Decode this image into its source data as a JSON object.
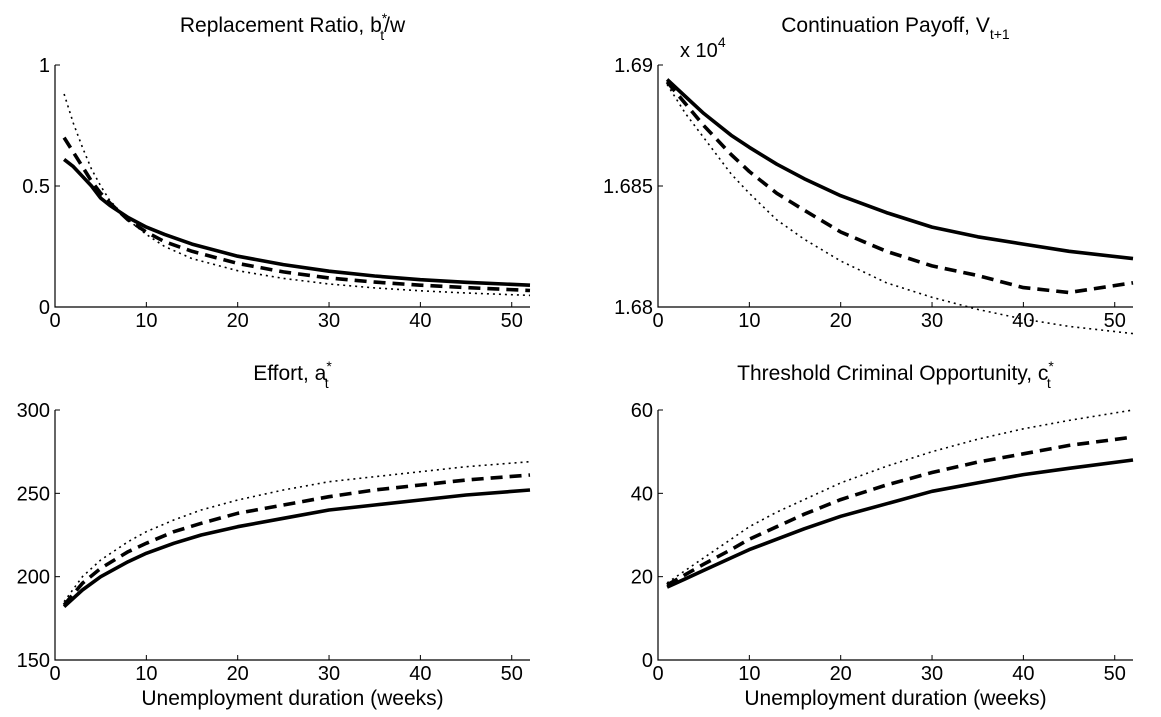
{
  "chart_data": [
    {
      "type": "line",
      "title": "Replacement Ratio, b",
      "title_sub": "t",
      "title_sup": "*",
      "title_tail": "/w",
      "xlabel": "",
      "xlim": [
        0,
        52
      ],
      "ylim": [
        0,
        1
      ],
      "xticks": [
        "0",
        "10",
        "20",
        "30",
        "40",
        "50"
      ],
      "yticks": [
        "0",
        "0.5",
        "1"
      ],
      "ytick_values": [
        0,
        0.5,
        1
      ],
      "exponent_label": "",
      "grid": false,
      "series": [
        {
          "style": "solid",
          "x": [
            1,
            2,
            3,
            4,
            5,
            6,
            8,
            10,
            12,
            15,
            20,
            25,
            30,
            35,
            40,
            45,
            52
          ],
          "y": [
            0.61,
            0.58,
            0.54,
            0.5,
            0.45,
            0.42,
            0.37,
            0.33,
            0.3,
            0.26,
            0.21,
            0.175,
            0.148,
            0.128,
            0.113,
            0.102,
            0.09
          ]
        },
        {
          "style": "dashed",
          "x": [
            1,
            2,
            3,
            4,
            5,
            6,
            8,
            10,
            12,
            15,
            20,
            25,
            30,
            35,
            40,
            45,
            52
          ],
          "y": [
            0.7,
            0.64,
            0.58,
            0.52,
            0.47,
            0.43,
            0.36,
            0.31,
            0.27,
            0.23,
            0.18,
            0.145,
            0.12,
            0.103,
            0.09,
            0.08,
            0.068
          ]
        },
        {
          "style": "dotted",
          "x": [
            1,
            2,
            3,
            4,
            5,
            6,
            8,
            10,
            12,
            15,
            20,
            25,
            30,
            35,
            40,
            45,
            52
          ],
          "y": [
            0.88,
            0.76,
            0.66,
            0.57,
            0.5,
            0.44,
            0.36,
            0.3,
            0.25,
            0.2,
            0.15,
            0.118,
            0.095,
            0.079,
            0.067,
            0.058,
            0.048
          ]
        }
      ]
    },
    {
      "type": "line",
      "title": "Continuation Payoff, V",
      "title_sub": "t+1",
      "title_sup": "",
      "title_tail": "",
      "xlabel": "",
      "xlim": [
        0,
        52
      ],
      "ylim": [
        1.68,
        1.69
      ],
      "xticks": [
        "0",
        "10",
        "20",
        "30",
        "40",
        "50"
      ],
      "yticks": [
        "1.68",
        "1.685",
        "1.69"
      ],
      "ytick_values": [
        1.68,
        1.685,
        1.69
      ],
      "exponent_label": "x 10",
      "exponent_power": "4",
      "grid": false,
      "series": [
        {
          "style": "solid",
          "x": [
            1,
            3,
            5,
            8,
            10,
            13,
            16,
            20,
            25,
            30,
            35,
            40,
            45,
            52
          ],
          "y": [
            1.6894,
            1.6887,
            1.688,
            1.6871,
            1.6866,
            1.6859,
            1.6853,
            1.6846,
            1.6839,
            1.6833,
            1.6829,
            1.6826,
            1.6823,
            1.682
          ]
        },
        {
          "style": "dashed",
          "x": [
            1,
            3,
            5,
            8,
            10,
            13,
            16,
            20,
            25,
            30,
            35,
            40,
            45,
            52
          ],
          "y": [
            1.6893,
            1.6884,
            1.6875,
            1.6863,
            1.6856,
            1.6847,
            1.684,
            1.6831,
            1.6823,
            1.6817,
            1.6813,
            1.6808,
            1.6806,
            1.681
          ]
        },
        {
          "style": "dotted",
          "x": [
            1,
            3,
            5,
            8,
            10,
            13,
            16,
            20,
            25,
            30,
            35,
            40,
            45,
            52
          ],
          "y": [
            1.6892,
            1.688,
            1.687,
            1.6855,
            1.6847,
            1.6836,
            1.6828,
            1.6819,
            1.681,
            1.6804,
            1.6799,
            1.6795,
            1.6792,
            1.6789
          ]
        }
      ]
    },
    {
      "type": "line",
      "title": "Effort, a",
      "title_sub": "t",
      "title_sup": "*",
      "title_tail": "",
      "xlabel": "Unemployment duration (weeks)",
      "xlim": [
        0,
        52
      ],
      "ylim": [
        150,
        300
      ],
      "xticks": [
        "0",
        "10",
        "20",
        "30",
        "40",
        "50"
      ],
      "yticks": [
        "150",
        "200",
        "250",
        "300"
      ],
      "ytick_values": [
        150,
        200,
        250,
        300
      ],
      "exponent_label": "",
      "grid": false,
      "series": [
        {
          "style": "solid",
          "x": [
            1,
            3,
            5,
            8,
            10,
            13,
            16,
            20,
            25,
            30,
            35,
            40,
            45,
            52
          ],
          "y": [
            182,
            192,
            200,
            209,
            214,
            220,
            225,
            230,
            235,
            240,
            243,
            246,
            249,
            252
          ]
        },
        {
          "style": "dashed",
          "x": [
            1,
            3,
            5,
            8,
            10,
            13,
            16,
            20,
            25,
            30,
            35,
            40,
            45,
            52
          ],
          "y": [
            183,
            196,
            205,
            215,
            220,
            227,
            232,
            238,
            243,
            248,
            252,
            255,
            258,
            261
          ]
        },
        {
          "style": "dotted",
          "x": [
            1,
            3,
            5,
            8,
            10,
            13,
            16,
            20,
            25,
            30,
            35,
            40,
            45,
            52
          ],
          "y": [
            185,
            200,
            210,
            221,
            227,
            234,
            240,
            246,
            252,
            257,
            260,
            263,
            266,
            269
          ]
        }
      ]
    },
    {
      "type": "line",
      "title": "Threshold Criminal Opportunity, c",
      "title_sub": "t",
      "title_sup": "*",
      "title_tail": "",
      "xlabel": "Unemployment duration (weeks)",
      "xlim": [
        0,
        52
      ],
      "ylim": [
        0,
        60
      ],
      "xticks": [
        "0",
        "10",
        "20",
        "30",
        "40",
        "50"
      ],
      "yticks": [
        "0",
        "20",
        "40",
        "60"
      ],
      "ytick_values": [
        0,
        20,
        40,
        60
      ],
      "exponent_label": "",
      "grid": false,
      "series": [
        {
          "style": "solid",
          "x": [
            1,
            3,
            5,
            8,
            10,
            13,
            16,
            20,
            25,
            30,
            35,
            40,
            45,
            52
          ],
          "y": [
            17.5,
            19.5,
            21.5,
            24.5,
            26.5,
            29,
            31.5,
            34.5,
            37.5,
            40.5,
            42.5,
            44.5,
            46,
            48
          ]
        },
        {
          "style": "dashed",
          "x": [
            1,
            3,
            5,
            8,
            10,
            13,
            16,
            20,
            25,
            30,
            35,
            40,
            45,
            52
          ],
          "y": [
            18,
            20.5,
            23,
            26.5,
            29,
            32,
            35,
            38.5,
            42,
            45,
            47.5,
            49.5,
            51.5,
            53.5
          ]
        },
        {
          "style": "dotted",
          "x": [
            1,
            3,
            5,
            8,
            10,
            13,
            16,
            20,
            25,
            30,
            35,
            40,
            45,
            52
          ],
          "y": [
            18.5,
            21.5,
            24.5,
            29,
            32,
            35.5,
            38.5,
            42.5,
            46.5,
            50,
            53,
            55.5,
            57.5,
            60
          ]
        }
      ]
    }
  ]
}
